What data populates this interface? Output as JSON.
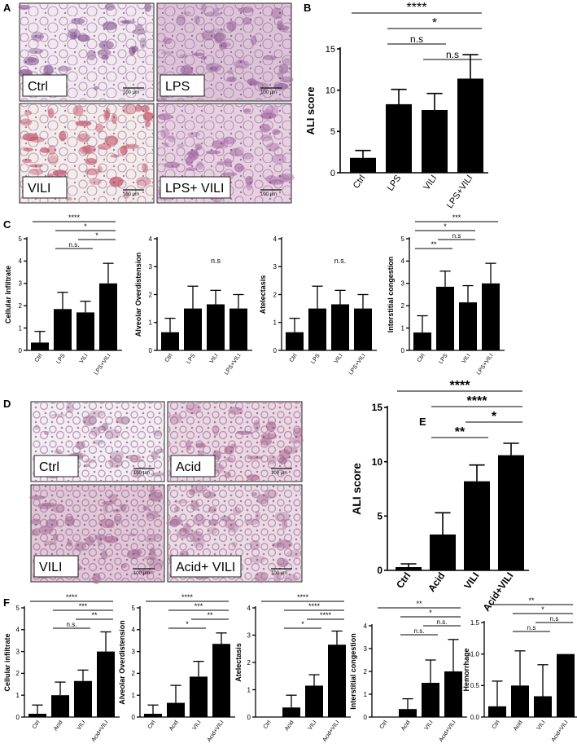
{
  "panel_letters": [
    "A",
    "B",
    "C",
    "D",
    "E",
    "F"
  ],
  "histology": {
    "set1": [
      {
        "label": "Ctrl",
        "scale": "100 μm",
        "tint": "#f2e8f0",
        "blob": "#7e4f8b"
      },
      {
        "label": "LPS",
        "scale": "100 μm",
        "tint": "#ddc3d8",
        "blob": "#9a6a9c"
      },
      {
        "label": "VILI",
        "scale": "100 μm",
        "tint": "#f4ecea",
        "blob": "#c44a5f"
      },
      {
        "label": "LPS+ VILI",
        "scale": "100 μm",
        "tint": "#e7d1e1",
        "blob": "#a76aa3"
      }
    ],
    "set2": [
      {
        "label": "Ctrl",
        "scale": "100 μm",
        "tint": "#f3eef4",
        "blob": "#a9839f"
      },
      {
        "label": "Acid",
        "scale": "100 μm",
        "tint": "#ead8e3",
        "blob": "#a86e93"
      },
      {
        "label": "VILI",
        "scale": "100 μm",
        "tint": "#e0c8d7",
        "blob": "#a57198"
      },
      {
        "label": "Acid+ VILI",
        "scale": "100 μm",
        "tint": "#eadce5",
        "blob": "#b07e9f"
      }
    ]
  },
  "chart_data": [
    {
      "id": "B",
      "type": "bar",
      "categories": [
        "Ctrl",
        "LPS",
        "VILI",
        "LPS+VILI"
      ],
      "values": [
        1.8,
        8.3,
        7.6,
        11.4
      ],
      "errors": [
        0.9,
        1.8,
        2.0,
        2.9
      ],
      "ylabel": "ALI score",
      "ylim": [
        0,
        15
      ],
      "yticks": [
        0,
        5,
        10,
        15
      ],
      "sig": [
        {
          "from": 0,
          "to": 3,
          "label": "****"
        },
        {
          "from": 1,
          "to": 3,
          "label": "*"
        },
        {
          "from": 1,
          "to": 2,
          "label": "n.s"
        },
        {
          "from": 2,
          "to": 3,
          "label": "n.s"
        }
      ]
    },
    {
      "id": "C1",
      "type": "bar",
      "categories": [
        "Ctrl",
        "LPS",
        "VILI",
        "LPS+VILI"
      ],
      "values": [
        0.35,
        1.85,
        1.7,
        3.0
      ],
      "errors": [
        0.5,
        0.75,
        0.5,
        0.9
      ],
      "ylabel": "Cellular Infiltrate",
      "ylim": [
        0,
        5
      ],
      "yticks": [
        0,
        1,
        2,
        3,
        4,
        5
      ],
      "sig": [
        {
          "from": 0,
          "to": 3,
          "label": "****"
        },
        {
          "from": 1,
          "to": 3,
          "label": "*"
        },
        {
          "from": 2,
          "to": 3,
          "label": "*"
        },
        {
          "from": 1,
          "to": 2,
          "label": "n.s."
        }
      ]
    },
    {
      "id": "C2",
      "type": "bar",
      "categories": [
        "Ctrl",
        "LPS",
        "VILI",
        "LPS+VILI"
      ],
      "values": [
        0.65,
        1.5,
        1.65,
        1.5
      ],
      "errors": [
        0.5,
        0.8,
        0.5,
        0.5
      ],
      "ylabel": "Alveolar Overdistension",
      "ylim": [
        0,
        4
      ],
      "yticks": [
        0,
        1,
        2,
        3,
        4
      ],
      "note": "n.s",
      "sig": []
    },
    {
      "id": "C3",
      "type": "bar",
      "categories": [
        "Ctrl",
        "LPS",
        "VILI",
        "LPS+VILI"
      ],
      "values": [
        0.65,
        1.5,
        1.65,
        1.5
      ],
      "errors": [
        0.5,
        0.8,
        0.5,
        0.5
      ],
      "ylabel": "Atelectasis",
      "ylim": [
        0,
        4
      ],
      "yticks": [
        0,
        1,
        2,
        3,
        4
      ],
      "note": "n.s.",
      "sig": []
    },
    {
      "id": "C4",
      "type": "bar",
      "categories": [
        "Ctrl",
        "LPS",
        "VILI",
        "LPS+VILI"
      ],
      "values": [
        0.8,
        2.85,
        2.15,
        3.0
      ],
      "errors": [
        0.75,
        0.7,
        0.75,
        0.9
      ],
      "ylabel": "Interstitial congestion",
      "ylim": [
        0,
        5
      ],
      "yticks": [
        0,
        1,
        2,
        3,
        4,
        5
      ],
      "sig": [
        {
          "from": 0,
          "to": 3,
          "label": "***"
        },
        {
          "from": 0,
          "to": 2,
          "label": "*"
        },
        {
          "from": 1,
          "to": 2,
          "label": "n.s"
        },
        {
          "from": 0,
          "to": 1,
          "label": "**"
        }
      ]
    },
    {
      "id": "E",
      "type": "bar",
      "categories": [
        "Ctrl",
        "Acid",
        "VILI",
        "Acid+VILI"
      ],
      "values": [
        0.3,
        3.3,
        8.2,
        10.6
      ],
      "errors": [
        0.3,
        2.0,
        1.5,
        1.1
      ],
      "ylabel": "ALI score",
      "ylim": [
        0,
        15
      ],
      "yticks": [
        0,
        5,
        10,
        15
      ],
      "sig": [
        {
          "from": 0,
          "to": 3,
          "label": "****"
        },
        {
          "from": 1,
          "to": 3,
          "label": "****"
        },
        {
          "from": 2,
          "to": 3,
          "label": "*"
        },
        {
          "from": 1,
          "to": 2,
          "label": "**"
        }
      ]
    },
    {
      "id": "F1",
      "type": "bar",
      "categories": [
        "Ctrl",
        "Acid",
        "VILI",
        "Acid+VILI"
      ],
      "values": [
        0.15,
        1.0,
        1.65,
        3.0
      ],
      "errors": [
        0.4,
        0.6,
        0.5,
        0.9
      ],
      "ylabel": "Cellular infiltrate",
      "ylim": [
        0,
        5
      ],
      "yticks": [
        0,
        1,
        2,
        3,
        4,
        5
      ],
      "sig": [
        {
          "from": 0,
          "to": 3,
          "label": "****"
        },
        {
          "from": 1,
          "to": 3,
          "label": "***"
        },
        {
          "from": 2,
          "to": 3,
          "label": "**"
        },
        {
          "from": 1,
          "to": 2,
          "label": "n.s."
        }
      ]
    },
    {
      "id": "F2",
      "type": "bar",
      "categories": [
        "Ctrl",
        "Acid",
        "VILI",
        "Acid+VILI"
      ],
      "values": [
        0.15,
        0.65,
        1.85,
        3.35
      ],
      "errors": [
        0.4,
        0.8,
        0.7,
        0.5
      ],
      "ylabel": "Alveolar Overdistension",
      "ylim": [
        0,
        5
      ],
      "yticks": [
        0,
        1,
        2,
        3,
        4,
        5
      ],
      "sig": [
        {
          "from": 0,
          "to": 3,
          "label": "****"
        },
        {
          "from": 1,
          "to": 3,
          "label": "***"
        },
        {
          "from": 2,
          "to": 3,
          "label": "**"
        },
        {
          "from": 1,
          "to": 2,
          "label": "*"
        }
      ]
    },
    {
      "id": "F3",
      "type": "bar",
      "categories": [
        "Ctrl",
        "Acid",
        "VILI",
        "Acid+VILI"
      ],
      "values": [
        0,
        0.35,
        1.15,
        2.65
      ],
      "errors": [
        0,
        0.45,
        0.4,
        0.5
      ],
      "ylabel": "Atelectasis",
      "ylim": [
        0,
        4
      ],
      "yticks": [
        0,
        1,
        2,
        3,
        4
      ],
      "sig": [
        {
          "from": 0,
          "to": 3,
          "label": "****"
        },
        {
          "from": 1,
          "to": 3,
          "label": "****"
        },
        {
          "from": 2,
          "to": 3,
          "label": "****"
        },
        {
          "from": 1,
          "to": 2,
          "label": "*"
        }
      ]
    },
    {
      "id": "F4",
      "type": "bar",
      "categories": [
        "Ctrl",
        "Acid",
        "VILI",
        "Acid+VILI"
      ],
      "values": [
        0,
        0.35,
        1.5,
        2.0
      ],
      "errors": [
        0,
        0.45,
        1.0,
        1.4
      ],
      "ylabel": "Interstitial congestion",
      "ylim": [
        0,
        4
      ],
      "yticks": [
        0,
        1,
        2,
        3,
        4
      ],
      "sig": [
        {
          "from": 0,
          "to": 3,
          "label": "**"
        },
        {
          "from": 1,
          "to": 3,
          "label": "*"
        },
        {
          "from": 2,
          "to": 3,
          "label": "n.s."
        },
        {
          "from": 1,
          "to": 2,
          "label": "n.s."
        }
      ]
    },
    {
      "id": "F5",
      "type": "bar",
      "categories": [
        "Ctrl",
        "Acid",
        "VILI",
        "Acid+VILI"
      ],
      "values": [
        0.17,
        0.5,
        0.33,
        1.0
      ],
      "errors": [
        0.4,
        0.55,
        0.5,
        0
      ],
      "ylabel": "Hemorrhage",
      "ylim": [
        0,
        1.5
      ],
      "yticks": [
        "0.0",
        "0.5",
        "1.0",
        "1.5"
      ],
      "sig": [
        {
          "from": 0,
          "to": 3,
          "label": "**"
        },
        {
          "from": 1,
          "to": 3,
          "label": "*"
        },
        {
          "from": 2,
          "to": 3,
          "label": "n.s"
        },
        {
          "from": 1,
          "to": 2,
          "label": "n.s"
        }
      ]
    }
  ]
}
